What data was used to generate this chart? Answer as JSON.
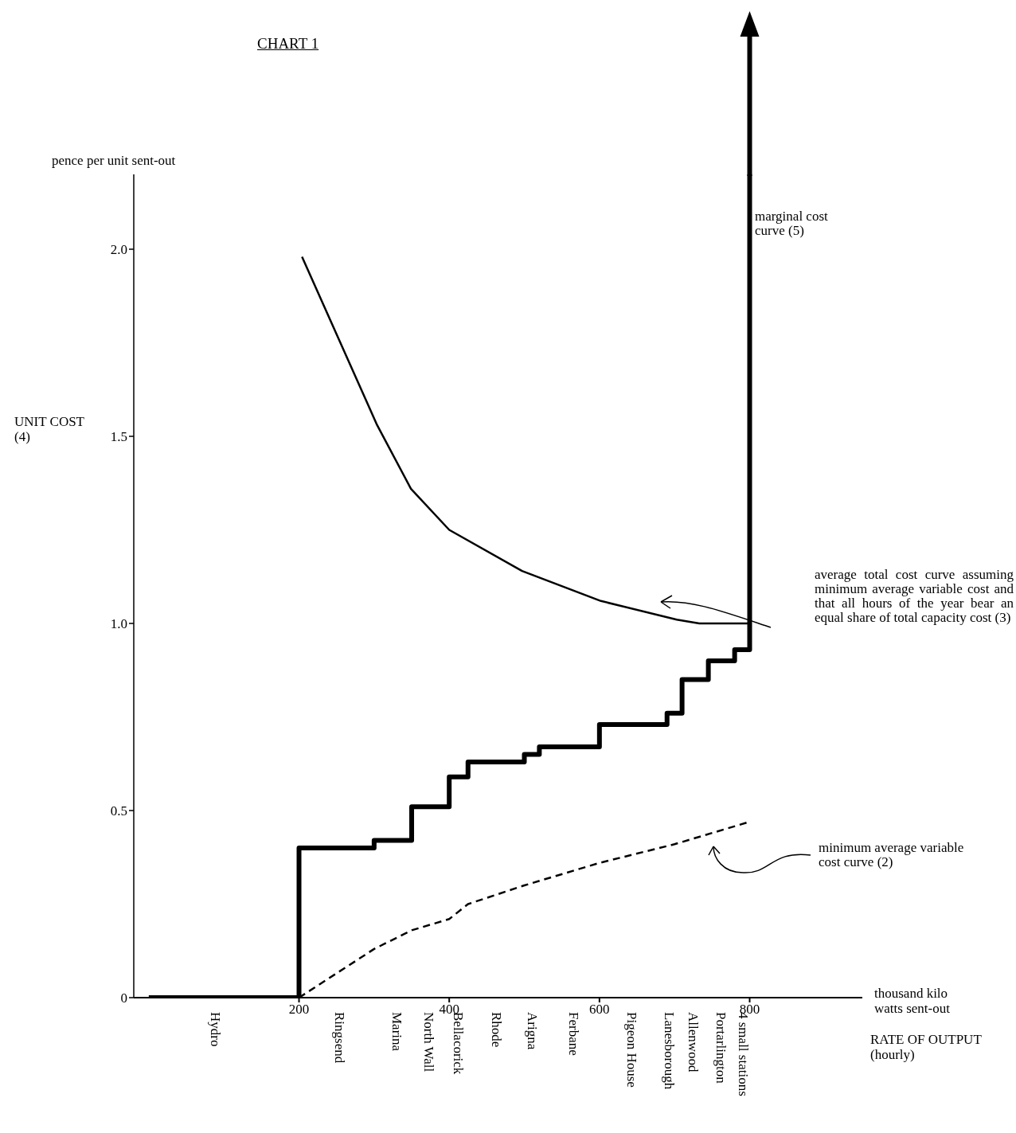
{
  "chart_data": {
    "type": "line",
    "title": "CHART 1",
    "ylabel": "pence per unit sent-out",
    "xlabel": "thousand kilo watts sent-out",
    "annotations": [
      "UNIT COST (4)",
      "RATE OF OUTPUT (hourly)",
      "Hydro",
      "Ringsend",
      "Marina",
      "North Wall",
      "Bellacorick",
      "Rhode",
      "Arigna",
      "Ferbane",
      "Pigeon House",
      "Lanesborough",
      "Allenwood",
      "Portarlington",
      "4 small stations"
    ],
    "series": [
      {
        "name": "marginal cost curve (5)",
        "type": "step",
        "color": "#000000",
        "x": [
          0,
          200,
          300,
          350,
          400,
          425,
          500,
          520,
          600,
          690,
          710,
          745,
          780,
          800
        ],
        "values": [
          0,
          0.4,
          0.42,
          0.51,
          0.59,
          0.63,
          0.65,
          0.67,
          0.73,
          0.76,
          0.85,
          0.9,
          0.93,
          2.2
        ]
      },
      {
        "name": "average total cost curve assuming minimum average variable cost and that all hours of the year bear an equal share of total capacity cost (3)",
        "color": "#000000",
        "x": [
          204,
          304,
          349,
          400,
          497,
          602,
          703,
          733,
          800
        ],
        "values": [
          1.98,
          1.53,
          1.36,
          1.25,
          1.14,
          1.06,
          1.01,
          1.0,
          1.0
        ]
      },
      {
        "name": "minimum average variable cost curve (2)",
        "color": "#000000",
        "line_style": "dashed",
        "x": [
          200,
          300,
          350,
          400,
          425,
          500,
          600,
          700,
          800
        ],
        "values": [
          0,
          0.13,
          0.18,
          0.21,
          0.25,
          0.3,
          0.36,
          0.41,
          0.47
        ]
      }
    ],
    "xlim": [
      -20,
      950
    ],
    "xticks": [
      200,
      400,
      600,
      800
    ],
    "ylim": [
      0,
      2.2
    ],
    "yticks": [
      0,
      {
        "value": 0.5,
        "label": "0.5"
      },
      {
        "value": 1,
        "label": "1.0"
      },
      {
        "value": 1.5,
        "label": "1.5"
      },
      {
        "value": 2,
        "label": "2.0"
      }
    ],
    "marker": "none",
    "line_style": "solid"
  }
}
